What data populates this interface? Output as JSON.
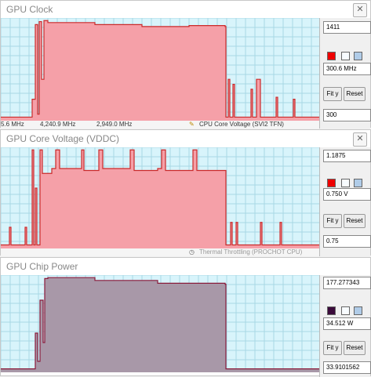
{
  "panels": [
    {
      "title": "GPU Clock",
      "max_value": "1411",
      "current_value": "300.6 MHz",
      "min_value": "300",
      "fit_label": "Fit y",
      "reset_label": "Reset",
      "color_hex": "#ee0000",
      "fill_color": "#f5a0a8",
      "line_color": "#cc2a2a",
      "strip_texts": [
        "5.6 MHz",
        "4,240.9 MHz",
        "2,949.0 MHz",
        "CPU Core Voltage (SVI2 TFN)"
      ],
      "strip_icon": "tool-icon"
    },
    {
      "title": "GPU Core Voltage (VDDC)",
      "max_value": "1.1875",
      "current_value": "0.750 V",
      "min_value": "0.75",
      "fit_label": "Fit y",
      "reset_label": "Reset",
      "color_hex": "#ee0000",
      "fill_color": "#f5a0a8",
      "line_color": "#cc2a2a",
      "strip_texts": [
        "",
        "",
        "",
        "Thermal Throttling (PROCHOT CPU)"
      ],
      "strip_icon": "clock-icon"
    },
    {
      "title": "GPU Chip Power",
      "max_value": "177.277343",
      "current_value": "34.512 W",
      "min_value": "33.9101562",
      "fit_label": "Fit y",
      "reset_label": "Reset",
      "color_hex": "#3a0a3a",
      "fill_color": "#a898a8",
      "line_color": "#8a1a3a",
      "strip_texts": [
        "",
        "",
        "",
        ""
      ],
      "strip_icon": "tool-icon"
    }
  ]
}
